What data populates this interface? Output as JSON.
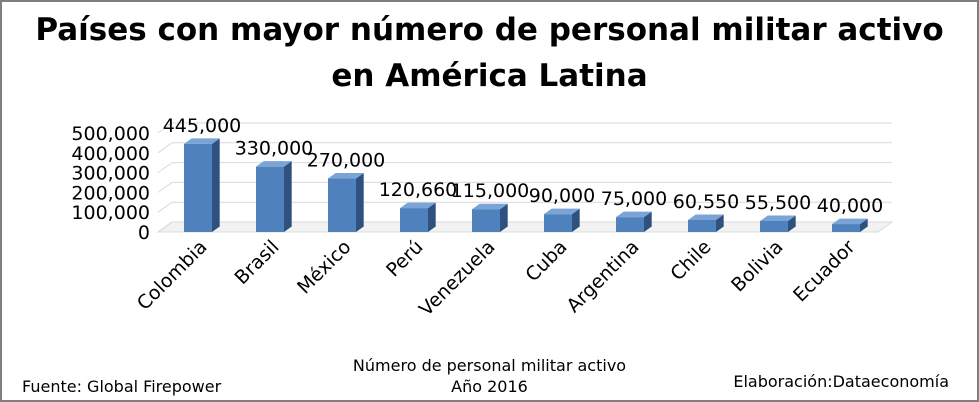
{
  "chart_data": {
    "type": "bar",
    "title_lines": [
      "Países con mayor número de personal militar activo",
      "en América Latina"
    ],
    "categories": [
      "Colombia",
      "Brasil",
      "México",
      "Perú",
      "Venezuela",
      "Cuba",
      "Argentina",
      "Chile",
      "Bolivia",
      "Ecuador"
    ],
    "values": [
      445000,
      330000,
      270000,
      120660,
      115000,
      90000,
      75000,
      60550,
      55500,
      40000
    ],
    "value_labels": [
      "445,000",
      "330,000",
      "270,000",
      "120,660",
      "115,000",
      "90,000",
      "75,000",
      "60,550",
      "55,500",
      "40,000"
    ],
    "xlabel_lines": [
      "Número de personal militar activo",
      "Año 2016"
    ],
    "ylim": [
      0,
      500000
    ],
    "yticks": [
      0,
      100000,
      200000,
      300000,
      400000,
      500000
    ],
    "ytick_labels": [
      "0",
      "100,000",
      "200,000",
      "300,000",
      "400,000",
      "500,000"
    ],
    "grid": true,
    "legend": "none",
    "bar_color": "#4f81bd"
  },
  "footer": {
    "source": "Fuente: Global Firepower",
    "credit": "Elaboración:Dataeconomía"
  }
}
